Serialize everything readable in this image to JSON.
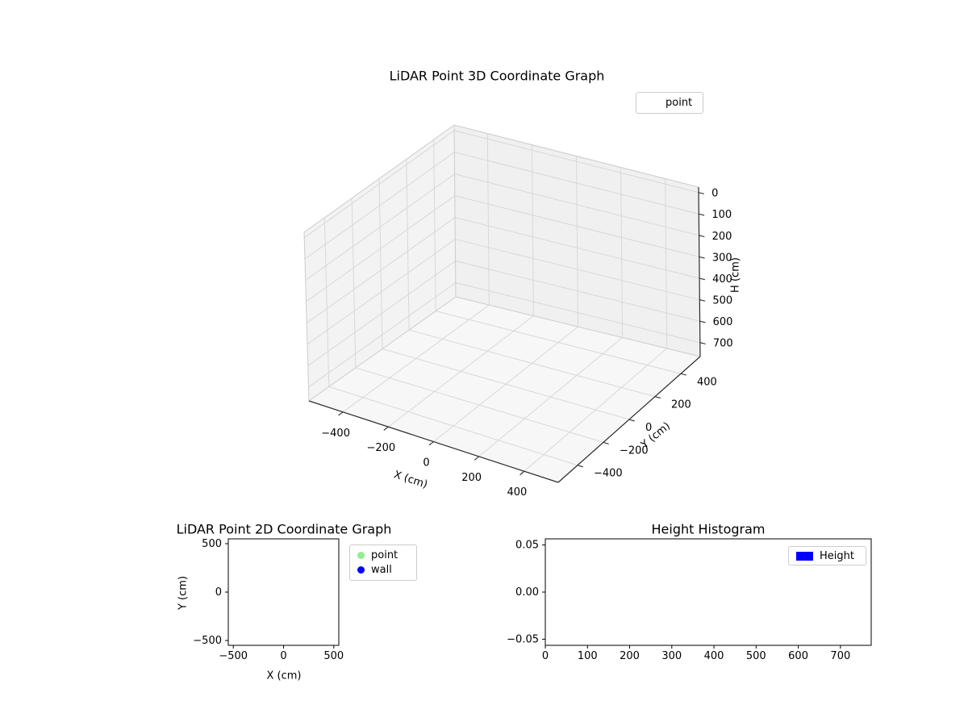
{
  "figure": {
    "background": "#ffffff"
  },
  "colors": {
    "point": "#90EE90",
    "wall": "#0000FF",
    "height_bar": "#0000FF"
  },
  "chart_data": [
    {
      "id": "plot3d",
      "type": "scatter",
      "projection": "3d",
      "title": "LiDAR Point 3D Coordinate Graph",
      "xlabel": "X (cm)",
      "ylabel": "Y (cm)",
      "zlabel": "H (cm)",
      "xlim": [
        -550,
        550
      ],
      "ylim": [
        -550,
        550
      ],
      "hlim": [
        0,
        700
      ],
      "h_axis_inverted": true,
      "grid": true,
      "x_ticks": [
        {
          "v": -400,
          "label": "−400"
        },
        {
          "v": -200,
          "label": "−200"
        },
        {
          "v": 0,
          "label": "0"
        },
        {
          "v": 200,
          "label": "200"
        },
        {
          "v": 400,
          "label": "400"
        }
      ],
      "y_ticks": [
        {
          "v": -400,
          "label": "−400"
        },
        {
          "v": -200,
          "label": "−200"
        },
        {
          "v": 0,
          "label": "0"
        },
        {
          "v": 200,
          "label": "200"
        },
        {
          "v": 400,
          "label": "400"
        }
      ],
      "h_ticks": [
        {
          "v": 0,
          "label": "0"
        },
        {
          "v": 100,
          "label": "100"
        },
        {
          "v": 200,
          "label": "200"
        },
        {
          "v": 300,
          "label": "300"
        },
        {
          "v": 400,
          "label": "400"
        },
        {
          "v": 500,
          "label": "500"
        },
        {
          "v": 600,
          "label": "600"
        },
        {
          "v": 700,
          "label": "700"
        }
      ],
      "legend": [
        {
          "label": "point",
          "marker": "none"
        }
      ],
      "legend_position": "upper right (outside axes, figure top right)",
      "points": []
    },
    {
      "id": "plot2d",
      "type": "scatter",
      "title": "LiDAR Point 2D Coordinate Graph",
      "xlabel": "X (cm)",
      "ylabel": "Y (cm)",
      "xlim": [
        -550,
        550
      ],
      "ylim": [
        -550,
        550
      ],
      "grid": false,
      "x_ticks": [
        {
          "v": -500,
          "label": "−500"
        },
        {
          "v": 0,
          "label": "0"
        },
        {
          "v": 500,
          "label": "500"
        }
      ],
      "y_ticks": [
        {
          "v": -500,
          "label": "−500"
        },
        {
          "v": 0,
          "label": "0"
        },
        {
          "v": 500,
          "label": "500"
        }
      ],
      "legend": [
        {
          "label": "point",
          "color": "#90EE90",
          "marker": "circle"
        },
        {
          "label": "wall",
          "color": "#0000FF",
          "marker": "circle"
        }
      ],
      "legend_position": "right of axes",
      "points": []
    },
    {
      "id": "hist",
      "type": "bar",
      "title": "Height Histogram",
      "xlabel": "",
      "ylabel": "",
      "xlim": [
        0,
        773
      ],
      "ylim": [
        -0.0565,
        0.0565
      ],
      "grid": false,
      "x_ticks": [
        {
          "v": 0,
          "label": "0"
        },
        {
          "v": 100,
          "label": "100"
        },
        {
          "v": 200,
          "label": "200"
        },
        {
          "v": 300,
          "label": "300"
        },
        {
          "v": 400,
          "label": "400"
        },
        {
          "v": 500,
          "label": "500"
        },
        {
          "v": 600,
          "label": "600"
        },
        {
          "v": 700,
          "label": "700"
        }
      ],
      "y_ticks": [
        {
          "v": -0.05,
          "label": "−0.05"
        },
        {
          "v": 0,
          "label": "0.00"
        },
        {
          "v": 0.05,
          "label": "0.05"
        }
      ],
      "legend": [
        {
          "label": "Height",
          "color": "#0000FF",
          "marker": "patch"
        }
      ],
      "legend_position": "upper right inside axes",
      "bars": []
    }
  ]
}
